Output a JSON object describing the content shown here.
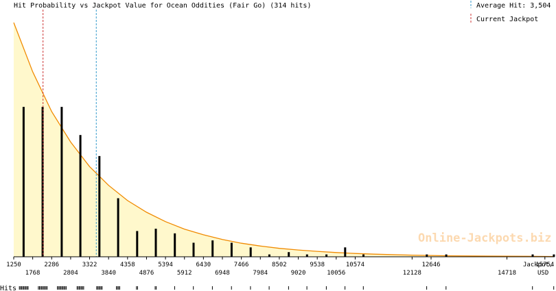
{
  "chart_data": {
    "type": "bar",
    "title": "Hit Probability vs Jackpot Value for Ocean Oddities (Fair Go) (314 hits)",
    "xlabel": "Jackpot, USD",
    "ylabel": "",
    "xlim": [
      1250,
      16020
    ],
    "ylim": [
      0,
      1.0
    ],
    "average_hit": {
      "label": "Average Hit: 3,504",
      "value": 3504,
      "color": "#3399cc"
    },
    "current_jackpot": {
      "label": "Current Jackpot",
      "value": 2050,
      "color": "#cc3333"
    },
    "watermark": "Online-Jackpots.biz",
    "hits_label": "Hits",
    "ticks_upper": [
      1250,
      2286,
      3322,
      4358,
      5394,
      6430,
      7466,
      8502,
      9538,
      10574,
      12646,
      15754
    ],
    "ticks_lower": [
      1768,
      2804,
      3840,
      4876,
      5912,
      6948,
      7984,
      9020,
      10056,
      12128,
      14718
    ],
    "series": [
      {
        "type": "bar",
        "x": [
          1520,
          2040,
          2560,
          3070,
          3590,
          4100,
          4620,
          5130,
          5650,
          6160,
          6680,
          7200,
          7720,
          8230,
          8760,
          9260,
          9790,
          10300,
          10800,
          12530,
          13060,
          15420,
          16000
        ],
        "values": [
          0.64,
          0.64,
          0.64,
          0.52,
          0.43,
          0.25,
          0.11,
          0.12,
          0.1,
          0.06,
          0.07,
          0.06,
          0.04,
          0.01,
          0.02,
          0.01,
          0.01,
          0.04,
          0.01,
          0.01,
          0.01,
          0.01,
          0.01
        ],
        "color": "#000000"
      },
      {
        "type": "area",
        "x": [
          1250,
          1768,
          2286,
          2804,
          3322,
          3840,
          4358,
          4876,
          5394,
          5912,
          6430,
          6948,
          7466,
          7984,
          8502,
          9020,
          9538,
          10056,
          10574,
          11092,
          12128,
          13164,
          14200,
          15236,
          16020
        ],
        "values": [
          1.0,
          0.79,
          0.62,
          0.49,
          0.385,
          0.305,
          0.24,
          0.19,
          0.15,
          0.118,
          0.094,
          0.074,
          0.058,
          0.046,
          0.036,
          0.029,
          0.023,
          0.018,
          0.014,
          0.011,
          0.007,
          0.004,
          0.003,
          0.002,
          0.001
        ],
        "color": "#f08a00",
        "fill": "#fff8cc"
      }
    ]
  }
}
